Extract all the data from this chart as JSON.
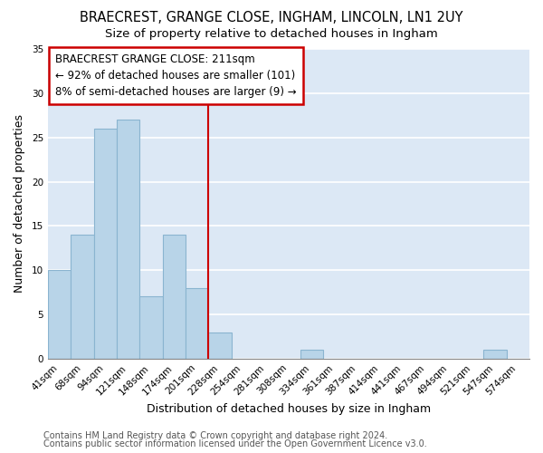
{
  "title": "BRAECREST, GRANGE CLOSE, INGHAM, LINCOLN, LN1 2UY",
  "subtitle": "Size of property relative to detached houses in Ingham",
  "xlabel": "Distribution of detached houses by size in Ingham",
  "ylabel": "Number of detached properties",
  "bar_labels": [
    "41sqm",
    "68sqm",
    "94sqm",
    "121sqm",
    "148sqm",
    "174sqm",
    "201sqm",
    "228sqm",
    "254sqm",
    "281sqm",
    "308sqm",
    "334sqm",
    "361sqm",
    "387sqm",
    "414sqm",
    "441sqm",
    "467sqm",
    "494sqm",
    "521sqm",
    "547sqm",
    "574sqm"
  ],
  "bar_values": [
    10,
    14,
    26,
    27,
    7,
    14,
    8,
    3,
    0,
    0,
    0,
    1,
    0,
    0,
    0,
    0,
    0,
    0,
    0,
    1,
    0
  ],
  "bar_color": "#b8d4e8",
  "bar_edge_color": "#8ab4d0",
  "vline_color": "#cc0000",
  "ylim": [
    0,
    35
  ],
  "yticks": [
    0,
    5,
    10,
    15,
    20,
    25,
    30,
    35
  ],
  "annotation_title": "BRAECREST GRANGE CLOSE: 211sqm",
  "annotation_line1": "← 92% of detached houses are smaller (101)",
  "annotation_line2": "8% of semi-detached houses are larger (9) →",
  "footer1": "Contains HM Land Registry data © Crown copyright and database right 2024.",
  "footer2": "Contains public sector information licensed under the Open Government Licence v3.0.",
  "fig_bg_color": "#ffffff",
  "plot_bg_color": "#dce8f5",
  "title_fontsize": 10.5,
  "subtitle_fontsize": 9.5,
  "label_fontsize": 9,
  "tick_fontsize": 7.5,
  "annotation_fontsize": 8.5,
  "footer_fontsize": 7
}
